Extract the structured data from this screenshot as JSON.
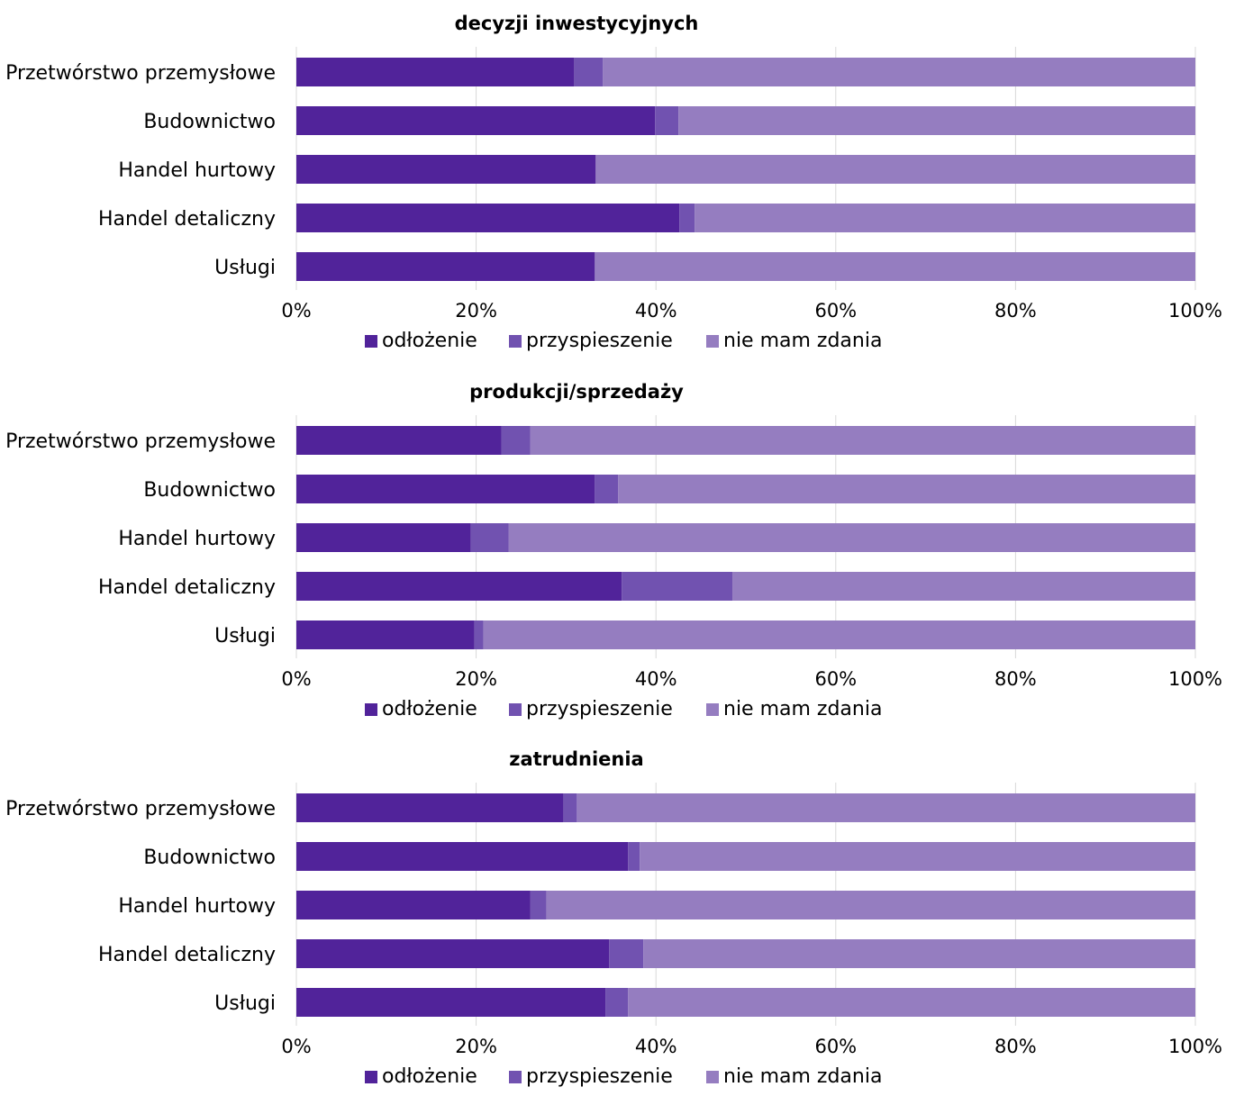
{
  "palette": {
    "odlozenie": "#51239a",
    "przyspieszenie": "#7152b0",
    "nie_mam_zdania": "#957dc0"
  },
  "chart_data": [
    {
      "type": "bar",
      "orientation": "horizontal",
      "stacked": true,
      "title": "decyzji inwestycyjnych",
      "categories": [
        "Przetwórstwo przemysłowe",
        "Budownictwo",
        "Handel hurtowy",
        "Handel detaliczny",
        "Usługi"
      ],
      "series": [
        {
          "name": "odłożenie",
          "color": "#51239a",
          "values": [
            30.9,
            39.9,
            33.3,
            42.6,
            33.2
          ]
        },
        {
          "name": "przyspieszenie",
          "color": "#7152b0",
          "values": [
            3.2,
            2.6,
            0,
            1.7,
            0
          ]
        },
        {
          "name": "nie mam zdania",
          "color": "#957dc0",
          "values": [
            65.9,
            57.5,
            66.7,
            55.7,
            66.8
          ]
        }
      ],
      "xlim": [
        0,
        100
      ],
      "xticks": [
        "0%",
        "20%",
        "40%",
        "60%",
        "80%",
        "100%"
      ],
      "grid": true,
      "legend": "bottom"
    },
    {
      "type": "bar",
      "orientation": "horizontal",
      "stacked": true,
      "title": "produkcji/sprzedaży",
      "categories": [
        "Przetwórstwo przemysłowe",
        "Budownictwo",
        "Handel hurtowy",
        "Handel detaliczny",
        "Usługi"
      ],
      "series": [
        {
          "name": "odłożenie",
          "color": "#51239a",
          "values": [
            22.8,
            33.2,
            19.4,
            36.2,
            19.8
          ]
        },
        {
          "name": "przyspieszenie",
          "color": "#7152b0",
          "values": [
            3.2,
            2.6,
            4.2,
            12.3,
            1.0
          ]
        },
        {
          "name": "nie mam zdania",
          "color": "#957dc0",
          "values": [
            74.0,
            64.2,
            76.4,
            51.5,
            79.2
          ]
        }
      ],
      "xlim": [
        0,
        100
      ],
      "xticks": [
        "0%",
        "20%",
        "40%",
        "60%",
        "80%",
        "100%"
      ],
      "grid": true,
      "legend": "bottom"
    },
    {
      "type": "bar",
      "orientation": "horizontal",
      "stacked": true,
      "title": "zatrudnienia",
      "categories": [
        "Przetwórstwo przemysłowe",
        "Budownictwo",
        "Handel hurtowy",
        "Handel detaliczny",
        "Usługi"
      ],
      "series": [
        {
          "name": "odłożenie",
          "color": "#51239a",
          "values": [
            29.7,
            36.9,
            26.0,
            34.8,
            34.4
          ]
        },
        {
          "name": "przyspieszenie",
          "color": "#7152b0",
          "values": [
            1.5,
            1.3,
            1.8,
            3.8,
            2.5
          ]
        },
        {
          "name": "nie mam zdania",
          "color": "#957dc0",
          "values": [
            68.8,
            61.8,
            72.2,
            61.4,
            63.1
          ]
        }
      ],
      "xlim": [
        0,
        100
      ],
      "xticks": [
        "0%",
        "20%",
        "40%",
        "60%",
        "80%",
        "100%"
      ],
      "grid": true,
      "legend": "bottom"
    }
  ]
}
